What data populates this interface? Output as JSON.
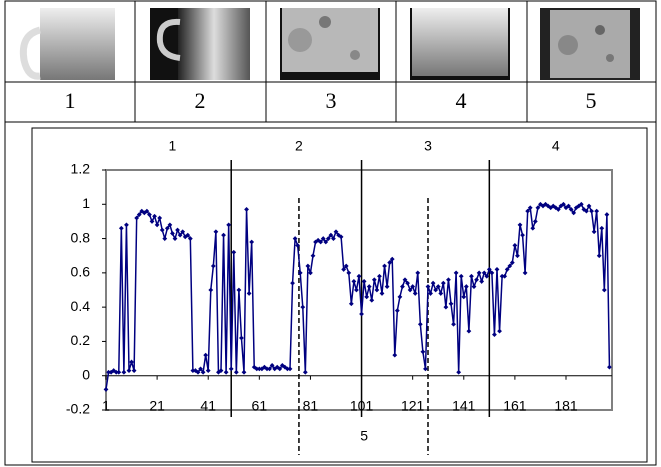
{
  "table": {
    "labels": [
      "1",
      "2",
      "3",
      "4",
      "5"
    ]
  },
  "chart_data": {
    "type": "line",
    "x": [
      1,
      2,
      3,
      4,
      5,
      6,
      7,
      8,
      9,
      10,
      11,
      12,
      13,
      14,
      15,
      16,
      17,
      18,
      19,
      20,
      21,
      22,
      23,
      24,
      25,
      26,
      27,
      28,
      29,
      30,
      31,
      32,
      33,
      34,
      35,
      36,
      37,
      38,
      39,
      40,
      41,
      42,
      43,
      44,
      45,
      46,
      47,
      48,
      49,
      50,
      51,
      52,
      53,
      54,
      55,
      56,
      57,
      58,
      59,
      60,
      61,
      62,
      63,
      64,
      65,
      66,
      67,
      68,
      69,
      70,
      71,
      72,
      73,
      74,
      75,
      76,
      77,
      78,
      79,
      80,
      81,
      82,
      83,
      84,
      85,
      86,
      87,
      88,
      89,
      90,
      91,
      92,
      93,
      94,
      95,
      96,
      97,
      98,
      99,
      100,
      101,
      102,
      103,
      104,
      105,
      106,
      107,
      108,
      109,
      110,
      111,
      112,
      113,
      114,
      115,
      116,
      117,
      118,
      119,
      120,
      121,
      122,
      123,
      124,
      125,
      126,
      127,
      128,
      129,
      130,
      131,
      132,
      133,
      134,
      135,
      136,
      137,
      138,
      139,
      140,
      141,
      142,
      143,
      144,
      145,
      146,
      147,
      148,
      149,
      150,
      151,
      152,
      153,
      154,
      155,
      156,
      157,
      158,
      159,
      160,
      161,
      162,
      163,
      164,
      165,
      166,
      167,
      168,
      169,
      170,
      171,
      172,
      173,
      174,
      175,
      176,
      177,
      178,
      179,
      180,
      181,
      182,
      183,
      184,
      185,
      186,
      187,
      188,
      189,
      190,
      191,
      192,
      193,
      194,
      195,
      196,
      197,
      198
    ],
    "series": [
      {
        "color": "#000080",
        "values": [
          -0.08,
          0.02,
          0.02,
          0.03,
          0.02,
          0.02,
          0.86,
          0.02,
          0.88,
          0.03,
          0.08,
          0.03,
          0.92,
          0.94,
          0.96,
          0.95,
          0.96,
          0.94,
          0.9,
          0.93,
          0.88,
          0.92,
          0.85,
          0.8,
          0.86,
          0.88,
          0.83,
          0.8,
          0.85,
          0.82,
          0.84,
          0.81,
          0.82,
          0.8,
          0.03,
          0.03,
          0.02,
          0.04,
          0.02,
          0.12,
          0.03,
          0.5,
          0.64,
          0.84,
          0.02,
          0.03,
          0.82,
          0.02,
          0.88,
          0.04,
          0.72,
          0.02,
          0.5,
          0.22,
          0.02,
          0.97,
          0.48,
          0.78,
          0.05,
          0.04,
          0.04,
          0.04,
          0.05,
          0.04,
          0.04,
          0.06,
          0.04,
          0.05,
          0.04,
          0.06,
          0.05,
          0.04,
          0.04,
          0.54,
          0.8,
          0.76,
          0.6,
          0.4,
          0.02,
          0.64,
          0.6,
          0.7,
          0.78,
          0.79,
          0.78,
          0.8,
          0.78,
          0.8,
          0.82,
          0.8,
          0.84,
          0.82,
          0.81,
          0.62,
          0.64,
          0.6,
          0.42,
          0.55,
          0.5,
          0.58,
          0.36,
          0.55,
          0.46,
          0.52,
          0.44,
          0.56,
          0.5,
          0.58,
          0.48,
          0.64,
          0.52,
          0.66,
          0.68,
          0.12,
          0.38,
          0.46,
          0.52,
          0.56,
          0.54,
          0.5,
          0.52,
          0.48,
          0.6,
          0.3,
          0.14,
          0.04,
          0.52,
          0.48,
          0.54,
          0.5,
          0.52,
          0.48,
          0.54,
          0.4,
          0.56,
          0.42,
          0.3,
          0.6,
          0.02,
          0.58,
          0.46,
          0.52,
          0.26,
          0.58,
          0.52,
          0.56,
          0.6,
          0.55,
          0.6,
          0.58,
          0.62,
          0.6,
          0.24,
          0.62,
          0.26,
          0.58,
          0.58,
          0.62,
          0.64,
          0.66,
          0.76,
          0.7,
          0.88,
          0.82,
          0.6,
          0.96,
          0.98,
          0.86,
          0.9,
          0.98,
          1.0,
          0.99,
          1.0,
          0.99,
          0.98,
          0.99,
          0.98,
          0.97,
          0.99,
          1.0,
          0.98,
          0.99,
          0.97,
          0.95,
          0.98,
          0.99,
          1.0,
          0.97,
          0.96,
          0.99,
          0.96,
          0.84,
          0.96,
          0.7,
          0.86,
          0.5,
          0.94,
          0.05
        ]
      }
    ],
    "xlim": [
      1,
      199
    ],
    "xticks": [
      1,
      21,
      41,
      61,
      81,
      101,
      121,
      141,
      161,
      181
    ],
    "ylim": [
      -0.2,
      1.2
    ],
    "yticks": [
      -0.2,
      0,
      0.2,
      0.4,
      0.6,
      0.8,
      1,
      1.2
    ],
    "boundaries": [
      {
        "x": 50,
        "style": "solid"
      },
      {
        "x": 76.5,
        "style": "dashed"
      },
      {
        "x": 101,
        "style": "solid"
      },
      {
        "x": 127,
        "style": "dashed"
      },
      {
        "x": 151,
        "style": "solid"
      }
    ],
    "segment_labels": [
      {
        "text": "1",
        "x": 27,
        "position": "top"
      },
      {
        "text": "2",
        "x": 76.5,
        "position": "top"
      },
      {
        "text": "3",
        "x": 127,
        "position": "top"
      },
      {
        "text": "4",
        "x": 177,
        "position": "top"
      },
      {
        "text": "5",
        "x": 102,
        "position": "bottom"
      }
    ]
  }
}
